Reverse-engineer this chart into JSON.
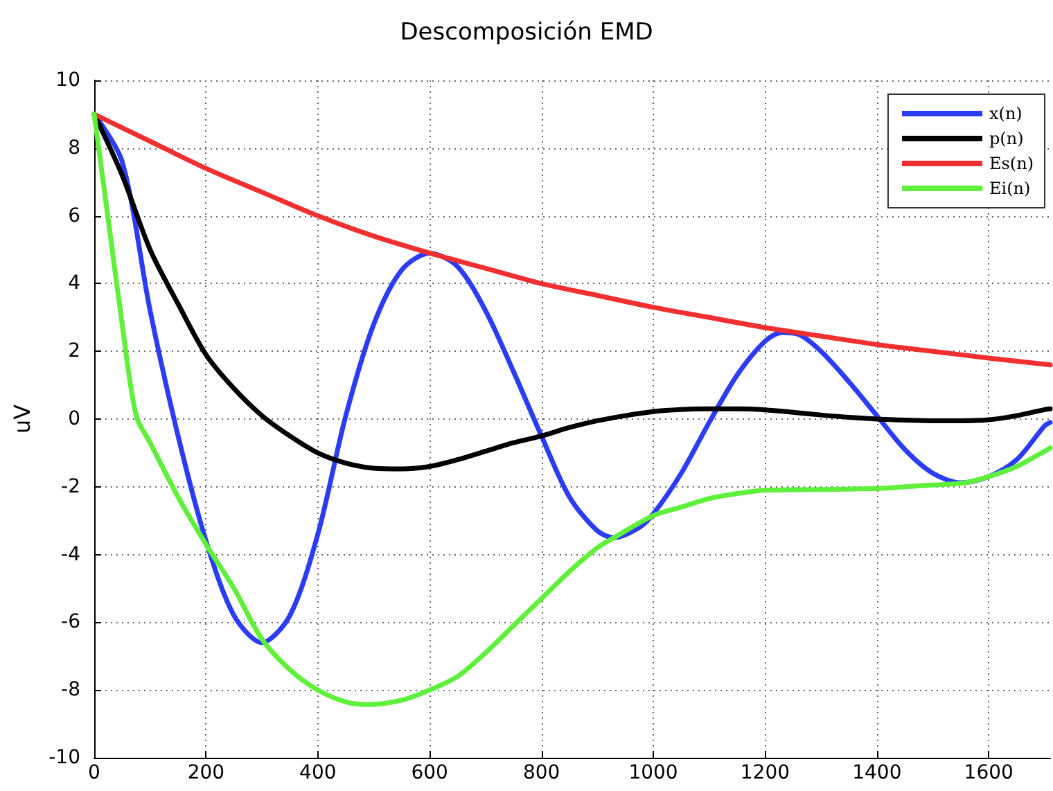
{
  "chart_data": {
    "type": "line",
    "title": "Descomposición EMD",
    "ylabel": "uV",
    "xlim": [
      0,
      1710
    ],
    "xticks": [
      0,
      200,
      400,
      600,
      800,
      1000,
      1200,
      1400,
      1600
    ],
    "ylim": [
      -10,
      10
    ],
    "yticks": [
      -10,
      -8,
      -6,
      -4,
      -2,
      0,
      2,
      4,
      6,
      8,
      10
    ],
    "grid": true,
    "legend": "top right",
    "marker": "none",
    "line_style": "solid",
    "series": [
      {
        "name": "x(n)",
        "color": "#2b3cf5",
        "x": [
          0,
          50,
          100,
          150,
          200,
          250,
          300,
          350,
          400,
          450,
          500,
          550,
          600,
          650,
          700,
          750,
          800,
          850,
          900,
          930,
          975,
          1000,
          1050,
          1100,
          1150,
          1200,
          1230,
          1260,
          1300,
          1350,
          1400,
          1450,
          1500,
          1550,
          1600,
          1650,
          1700,
          1710
        ],
        "values": [
          9,
          7.6,
          3.2,
          -0.5,
          -3.6,
          -5.8,
          -6.6,
          -5.8,
          -3.4,
          0.1,
          2.8,
          4.4,
          4.9,
          4.5,
          3.2,
          1.4,
          -0.5,
          -2.3,
          -3.3,
          -3.5,
          -3.2,
          -2.8,
          -1.6,
          -0.1,
          1.3,
          2.3,
          2.55,
          2.5,
          2,
          1.1,
          0.1,
          -0.9,
          -1.6,
          -1.88,
          -1.7,
          -1.2,
          -0.2,
          -0.1
        ]
      },
      {
        "name": "p(n)",
        "color": "#000000",
        "x": [
          0,
          50,
          100,
          150,
          200,
          250,
          300,
          350,
          400,
          450,
          500,
          550,
          600,
          650,
          700,
          750,
          800,
          850,
          900,
          950,
          1000,
          1050,
          1100,
          1150,
          1200,
          1250,
          1300,
          1350,
          1400,
          1450,
          1500,
          1550,
          1600,
          1650,
          1700,
          1710
        ],
        "values": [
          9,
          7.2,
          5,
          3.4,
          1.9,
          0.9,
          0.1,
          -0.5,
          -1,
          -1.3,
          -1.45,
          -1.47,
          -1.4,
          -1.2,
          -0.95,
          -0.7,
          -0.5,
          -0.25,
          -0.05,
          0.1,
          0.22,
          0.28,
          0.3,
          0.3,
          0.27,
          0.2,
          0.12,
          0.05,
          0,
          -0.03,
          -0.05,
          -0.05,
          -0.02,
          0.1,
          0.28,
          0.3
        ]
      },
      {
        "name": "Es(n)",
        "color": "#f03030",
        "x": [
          0,
          100,
          200,
          300,
          400,
          500,
          600,
          700,
          800,
          900,
          1000,
          1100,
          1200,
          1300,
          1400,
          1500,
          1600,
          1710
        ],
        "values": [
          9,
          8.2,
          7.4,
          6.7,
          6,
          5.4,
          4.9,
          4.45,
          4,
          3.65,
          3.3,
          3,
          2.7,
          2.45,
          2.2,
          2,
          1.8,
          1.6
        ]
      },
      {
        "name": "Ei(n)",
        "color": "#5ef03a",
        "x": [
          0,
          25,
          50,
          75,
          100,
          150,
          200,
          250,
          300,
          350,
          400,
          450,
          489,
          550,
          600,
          650,
          700,
          750,
          800,
          850,
          900,
          930,
          1000,
          1050,
          1100,
          1150,
          1200,
          1300,
          1400,
          1450,
          1500,
          1557,
          1600,
          1650,
          1700,
          1710
        ],
        "values": [
          9,
          5.9,
          2.8,
          0.1,
          -0.7,
          -2.3,
          -3.7,
          -5,
          -6.5,
          -7.4,
          -8,
          -8.35,
          -8.43,
          -8.3,
          -8,
          -7.6,
          -6.9,
          -6.1,
          -5.3,
          -4.5,
          -3.8,
          -3.5,
          -2.85,
          -2.6,
          -2.35,
          -2.2,
          -2.1,
          -2.08,
          -2.05,
          -2,
          -1.95,
          -1.88,
          -1.7,
          -1.4,
          -0.95,
          -0.85
        ]
      }
    ]
  }
}
